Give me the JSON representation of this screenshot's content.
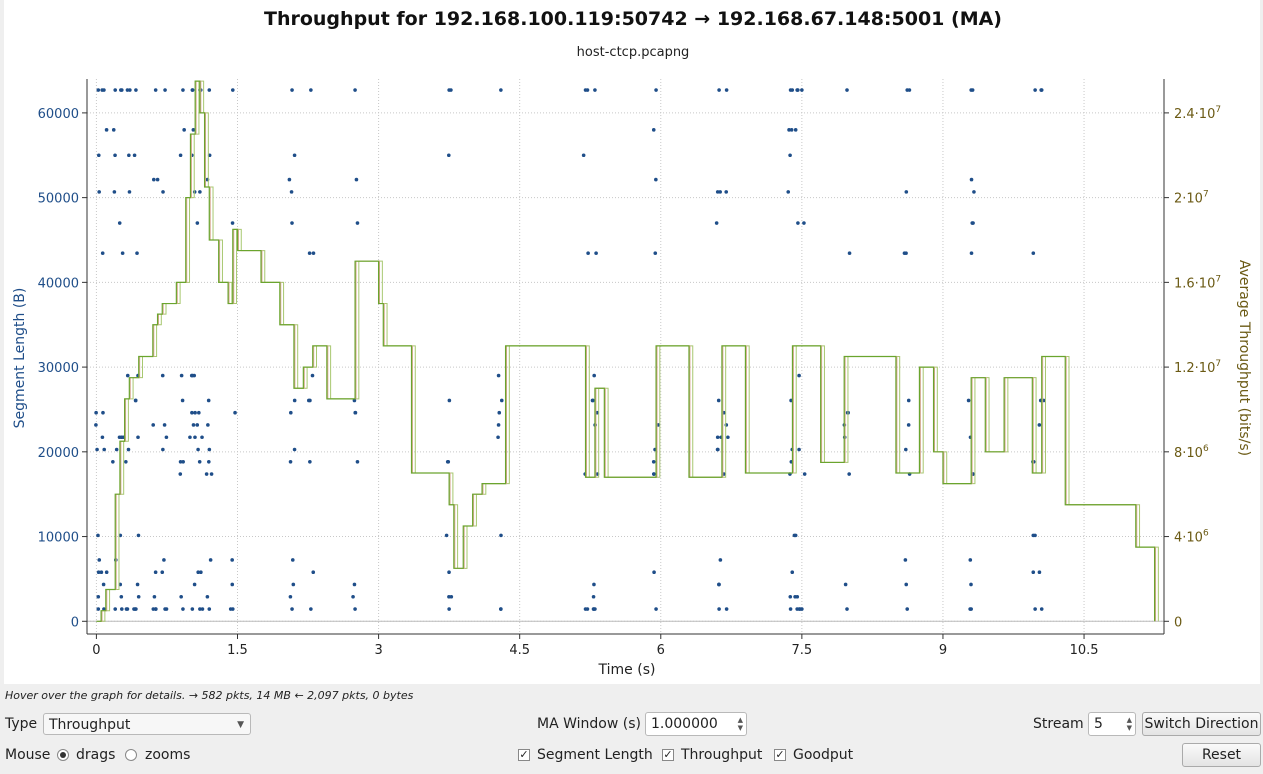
{
  "chart_data": {
    "type": "scatter+line",
    "title": "Throughput for 192.168.100.119:50742 → 192.168.67.148:5001 (MA)",
    "subtitle": "host-ctcp.pcapng",
    "xlabel": "Time (s)",
    "ylabel_left": "Segment Length (B)",
    "ylabel_right": "Average Throughput (bits/s)",
    "xlim": [
      -0.1,
      11.35
    ],
    "ylim_left": [
      -1500,
      64000
    ],
    "ylim_right": [
      -600000,
      25600000
    ],
    "x_ticks": [
      0,
      1.5,
      3,
      4.5,
      6,
      7.5,
      9,
      10.5
    ],
    "x_tick_labels": [
      "0",
      "1.5",
      "3",
      "4.5",
      "6",
      "7.5",
      "9",
      "10.5"
    ],
    "y_left_ticks": [
      0,
      10000,
      20000,
      30000,
      40000,
      50000,
      60000
    ],
    "y_left_tick_labels": [
      "0",
      "10000",
      "20000",
      "30000",
      "40000",
      "50000",
      "60000"
    ],
    "y_right_ticks": [
      0,
      4000000,
      8000000,
      12000000,
      16000000,
      20000000,
      24000000
    ],
    "y_right_tick_labels": [
      {
        "base": "0",
        "exp": ""
      },
      {
        "base": "4·10",
        "exp": "6"
      },
      {
        "base": "8·10",
        "exp": "6"
      },
      {
        "base": "1.2·10",
        "exp": "7"
      },
      {
        "base": "1.6·10",
        "exp": "7"
      },
      {
        "base": "2·10",
        "exp": "7"
      },
      {
        "base": "2.4·10",
        "exp": "7"
      }
    ],
    "grid": true,
    "colors": {
      "segment": "#1f4e89",
      "throughput": "#d8a890",
      "goodput": "#6aa52e",
      "goodput2": "#a8c870",
      "axis_left": "#1f4e89",
      "axis_right": "#6b5a14"
    },
    "columns_x": [
      0.02,
      0.08,
      0.2,
      0.27,
      0.33,
      0.42,
      0.63,
      0.73,
      0.92,
      1.02,
      1.1,
      1.2,
      1.45,
      2.08,
      2.28,
      2.75,
      3.75,
      4.3,
      5.2,
      5.3,
      5.95,
      6.62,
      6.7,
      7.38,
      7.45,
      7.5,
      7.98,
      8.62,
      9.3,
      9.98,
      10.05
    ],
    "segment_levels": [
      1448,
      2896,
      4344,
      5792,
      7240,
      10136,
      17376,
      18824,
      20272,
      21720,
      23168,
      24616,
      26064,
      29000,
      43440,
      47000,
      50680,
      52128,
      55000,
      58000,
      62700
    ],
    "series": [
      {
        "name": "Throughput",
        "x": [
          0,
          0.05,
          0.1,
          0.2,
          0.25,
          0.3,
          0.35,
          0.45,
          0.6,
          0.65,
          0.7,
          0.85,
          0.95,
          1.0,
          1.05,
          1.1,
          1.15,
          1.2,
          1.3,
          1.4,
          1.45,
          1.5,
          1.75,
          1.95,
          2.1,
          2.2,
          2.3,
          2.45,
          2.7,
          2.75,
          2.85,
          3.0,
          3.05,
          3.25,
          3.35,
          3.75,
          3.8,
          3.9,
          4.0,
          4.1,
          4.35,
          4.8,
          5.2,
          5.3,
          5.4,
          5.95,
          6.3,
          6.65,
          6.7,
          6.9,
          7.1,
          7.4,
          7.55,
          7.7,
          7.95,
          8.2,
          8.5,
          8.75,
          8.9,
          9.0,
          9.3,
          9.45,
          9.65,
          9.95,
          10.05,
          10.3,
          10.5,
          11.0,
          11.05,
          11.25
        ],
        "y": [
          0,
          500000,
          1500000,
          6000000,
          8500000,
          10500000,
          11500000,
          12500000,
          14000000,
          14500000,
          15000000,
          16000000,
          20000000,
          23000000,
          25500000,
          24000000,
          20500000,
          18000000,
          16000000,
          15000000,
          18500000,
          17500000,
          16000000,
          14000000,
          11000000,
          12000000,
          13000000,
          10500000,
          10500000,
          17000000,
          17000000,
          15000000,
          13000000,
          13000000,
          7000000,
          5500000,
          2500000,
          4500000,
          6000000,
          6500000,
          13000000,
          13000000,
          6800000,
          11000000,
          6800000,
          13000000,
          6800000,
          13000000,
          13000000,
          7000000,
          7000000,
          13000000,
          13000000,
          7500000,
          12500000,
          12500000,
          7000000,
          12000000,
          8000000,
          6500000,
          11500000,
          8000000,
          11500000,
          7000000,
          12500000,
          5500000,
          5500000,
          5500000,
          3500000,
          0
        ]
      },
      {
        "name": "Goodput",
        "x": [
          0,
          0.05,
          0.1,
          0.2,
          0.25,
          0.3,
          0.35,
          0.45,
          0.6,
          0.65,
          0.7,
          0.85,
          0.95,
          1.0,
          1.05,
          1.1,
          1.15,
          1.2,
          1.3,
          1.4,
          1.45,
          1.5,
          1.75,
          1.95,
          2.1,
          2.2,
          2.3,
          2.45,
          2.7,
          2.75,
          2.85,
          3.0,
          3.05,
          3.25,
          3.35,
          3.75,
          3.8,
          3.9,
          4.0,
          4.1,
          4.35,
          4.8,
          5.2,
          5.3,
          5.4,
          5.95,
          6.3,
          6.65,
          6.7,
          6.9,
          7.1,
          7.4,
          7.55,
          7.7,
          7.95,
          8.2,
          8.5,
          8.75,
          8.9,
          9.0,
          9.3,
          9.45,
          9.65,
          9.95,
          10.05,
          10.3,
          10.5,
          11.0,
          11.05,
          11.25
        ],
        "y": [
          0,
          500000,
          1500000,
          6000000,
          8500000,
          10500000,
          11500000,
          12500000,
          14000000,
          14500000,
          15000000,
          16000000,
          20000000,
          23000000,
          25500000,
          24000000,
          20500000,
          18000000,
          16000000,
          15000000,
          18500000,
          17500000,
          16000000,
          14000000,
          11000000,
          12000000,
          13000000,
          10500000,
          10500000,
          17000000,
          17000000,
          15000000,
          13000000,
          13000000,
          7000000,
          5500000,
          2500000,
          4500000,
          6000000,
          6500000,
          13000000,
          13000000,
          6800000,
          11000000,
          6800000,
          13000000,
          6800000,
          13000000,
          13000000,
          7000000,
          7000000,
          13000000,
          13000000,
          7500000,
          12500000,
          12500000,
          7000000,
          12000000,
          8000000,
          6500000,
          11500000,
          8000000,
          11500000,
          7000000,
          12500000,
          5500000,
          5500000,
          5500000,
          3500000,
          0
        ]
      }
    ]
  },
  "status": {
    "hint": "Hover over the graph for details. → 582 pkts, 14 MB ← 2,097 pkts, 0 bytes"
  },
  "controls": {
    "type_label": "Type",
    "type_value": "Throughput",
    "ma_window_label": "MA Window (s)",
    "ma_window_value": "1.000000",
    "stream_label": "Stream",
    "stream_value": "5",
    "switch_direction": "Switch Direction",
    "mouse_label": "Mouse",
    "mouse_drags": "drags",
    "mouse_zooms": "zooms",
    "segment_length": "Segment Length",
    "throughput": "Throughput",
    "goodput": "Goodput",
    "reset": "Reset"
  }
}
